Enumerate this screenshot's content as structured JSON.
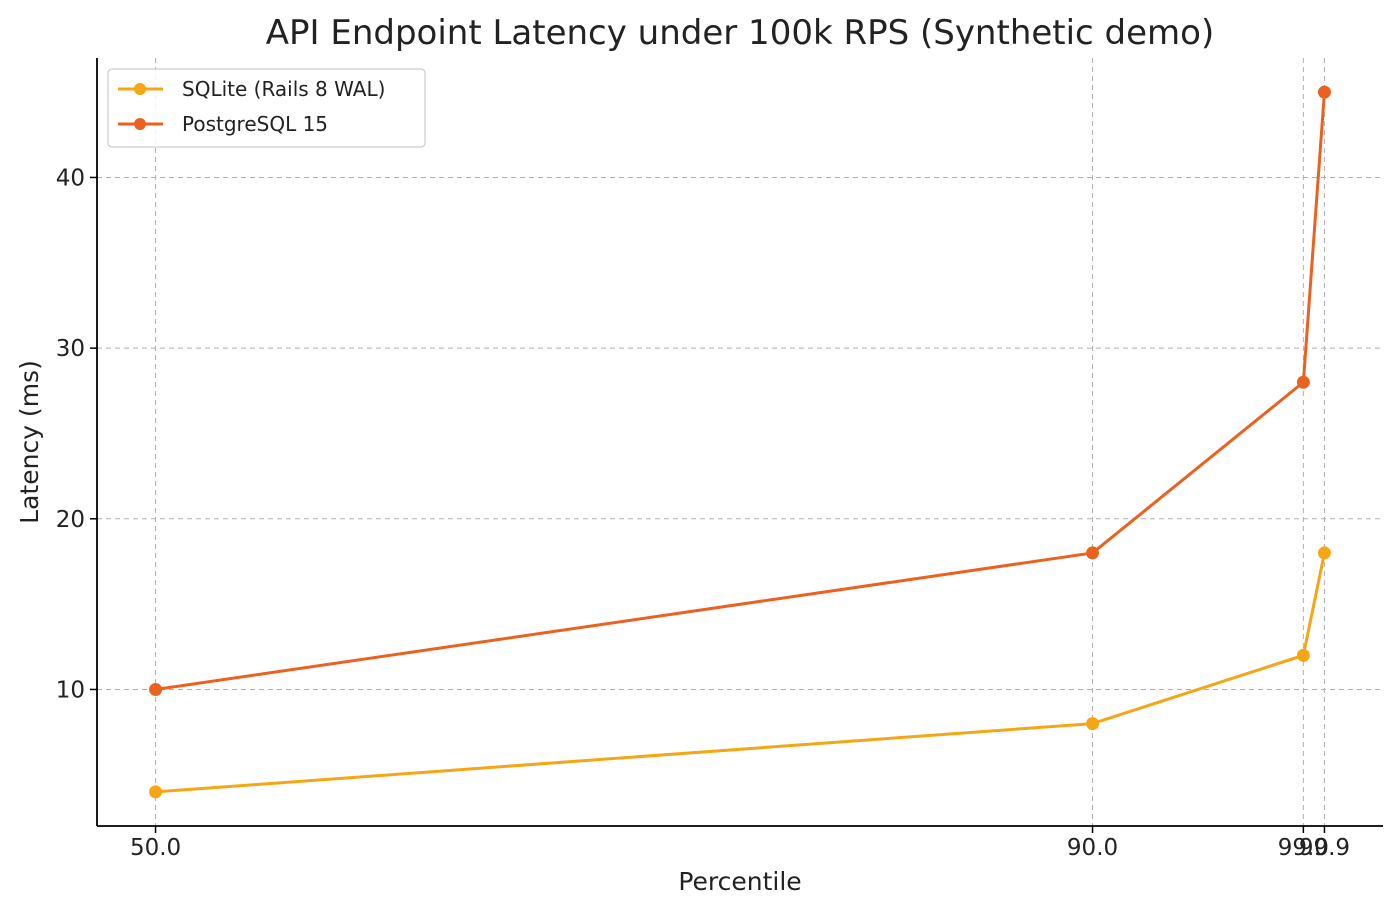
{
  "chart_data": {
    "type": "line",
    "title": "API Endpoint Latency under 100k RPS (Synthetic demo)",
    "xlabel": "Percentile",
    "ylabel": "Latency (ms)",
    "x": [
      50.0,
      90.0,
      99.0,
      99.9
    ],
    "x_tick_labels": [
      "50.0",
      "90.0",
      "99.0",
      "99.9"
    ],
    "y_ticks": [
      10,
      20,
      30,
      40
    ],
    "y_tick_labels": [
      "10",
      "20",
      "30",
      "40"
    ],
    "xlim": [
      47.5,
      102.4
    ],
    "ylim": [
      2.0,
      47.0
    ],
    "grid": true,
    "legend_position": "top-left",
    "series": [
      {
        "name": "SQLite (Rails 8 WAL)",
        "color": "#f5a614",
        "values": [
          4,
          8,
          12,
          18
        ]
      },
      {
        "name": "PostgreSQL 15",
        "color": "#eb6120",
        "values": [
          10,
          18,
          28,
          45
        ]
      }
    ]
  }
}
